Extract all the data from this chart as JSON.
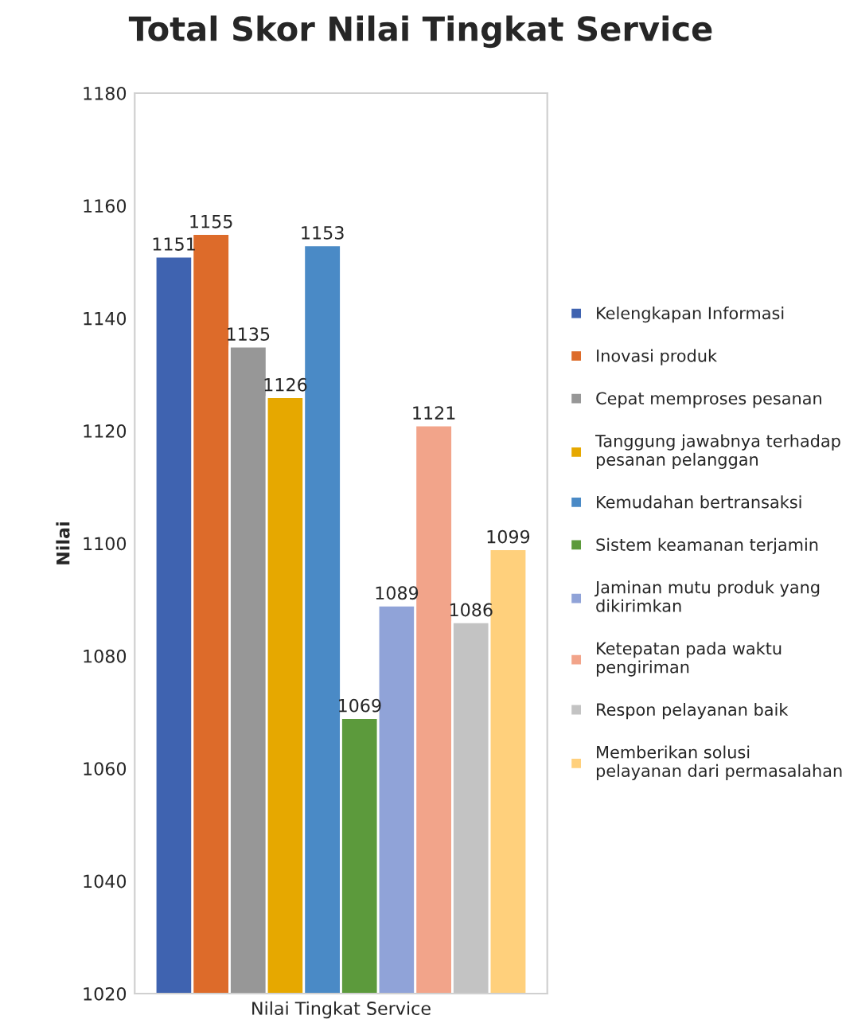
{
  "chart_data": {
    "type": "bar",
    "title": "Total Skor Nilai Tingkat Service",
    "ylabel": "Nilai",
    "categories": [
      "Nilai Tingkat Service"
    ],
    "series": [
      {
        "name": "Kelengkapan Informasi",
        "color": "#3f63b0",
        "values": [
          1151
        ]
      },
      {
        "name": "Inovasi produk",
        "color": "#dd6b2a",
        "values": [
          1155
        ]
      },
      {
        "name": "Cepat memproses pesanan",
        "color": "#979797",
        "values": [
          1135
        ]
      },
      {
        "name": "Tanggung jawabnya terhadap\npesanan pelanggan",
        "color": "#e6a800",
        "values": [
          1126
        ]
      },
      {
        "name": "Kemudahan bertransaksi",
        "color": "#4a8ac6",
        "values": [
          1153
        ]
      },
      {
        "name": "Sistem keamanan terjamin",
        "color": "#5c9a3c",
        "values": [
          1069
        ]
      },
      {
        "name": "Jaminan mutu produk yang\ndikirimkan",
        "color": "#90a3d8",
        "values": [
          1089
        ]
      },
      {
        "name": "Ketepatan pada waktu\npengiriman",
        "color": "#f2a48a",
        "values": [
          1121
        ]
      },
      {
        "name": "Respon pelayanan baik",
        "color": "#c3c3c3",
        "values": [
          1086
        ]
      },
      {
        "name": "Memberikan solusi\npelayanan dari permasalahan",
        "color": "#ffd07c",
        "values": [
          1099
        ]
      }
    ],
    "ylim": [
      1020,
      1180
    ],
    "yticks": [
      1020,
      1040,
      1060,
      1080,
      1100,
      1120,
      1140,
      1160,
      1180
    ],
    "grid": false,
    "legend": "right",
    "data_labels": true
  }
}
